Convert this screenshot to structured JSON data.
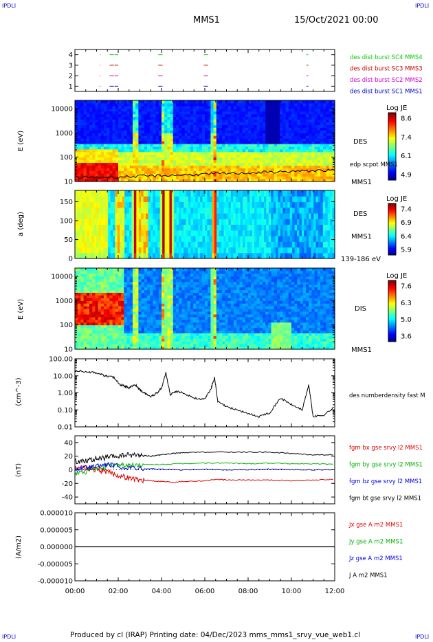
{
  "header": {
    "corner_left": "IPDLI",
    "corner_right": "IPDLI",
    "corner_bottom_left": "IPDLI",
    "corner_bottom_right": "IPDLI",
    "spacecraft": "MMS1",
    "date": "15/Oct/2021 00:00"
  },
  "footer": {
    "text": "Produced by cl (IRAP)   Printing date: 04/Dec/2023   mms_mms1_srvy_vue_web1.cl"
  },
  "colors": {
    "mms1": "#0000cc",
    "mms2": "#cc00cc",
    "mms3": "#cc0000",
    "mms4": "#00cc00",
    "bx": "#e00000",
    "by": "#00b000",
    "bz": "#0000e0",
    "bt": "#000000"
  },
  "chart_data": [
    {
      "type": "scatter",
      "name": "burst-availability",
      "ylim": [
        0.5,
        4.5
      ],
      "yticks": [
        "1",
        "2",
        "3",
        "4"
      ],
      "series": [
        {
          "name": "des dist burst SC1 MMS1",
          "y": 1,
          "intervals": [
            [
              1.6,
              1.8
            ],
            [
              1.83,
              2.0
            ],
            [
              3.85,
              4.05
            ],
            [
              5.95,
              6.15
            ],
            [
              10.7,
              10.78
            ]
          ]
        },
        {
          "name": "des dist burst SC2 MMS2",
          "y": 2,
          "intervals": [
            [
              1.6,
              1.8
            ],
            [
              1.83,
              2.0
            ],
            [
              3.85,
              4.05
            ],
            [
              5.95,
              6.15
            ],
            [
              10.7,
              10.78
            ]
          ]
        },
        {
          "name": "des dist burst SC3 MMS3",
          "y": 3,
          "intervals": [
            [
              1.6,
              1.8
            ],
            [
              1.83,
              2.0
            ],
            [
              3.85,
              4.05
            ],
            [
              5.95,
              6.15
            ],
            [
              10.7,
              10.78
            ]
          ]
        },
        {
          "name": "des dist burst SC4 MMS4",
          "y": 4,
          "intervals": [
            [
              1.6,
              1.8
            ],
            [
              1.83,
              2.0
            ],
            [
              3.85,
              4.05
            ],
            [
              5.95,
              6.15
            ],
            [
              10.7,
              10.78
            ]
          ]
        }
      ]
    },
    {
      "type": "heatmap",
      "name": "des-energy",
      "ylabel": "E (eV)",
      "yticks": [
        "10",
        "100",
        "1000",
        "10000"
      ],
      "label": "DES",
      "sc": "MMS1",
      "overlay_label": "edp scpot MMS1",
      "colorbar": {
        "title": "Log JE",
        "ticks": [
          "8.6",
          "7.4",
          "6.1",
          "4.9"
        ]
      }
    },
    {
      "type": "heatmap",
      "name": "des-pitch-angle",
      "ylabel": "a (deg)",
      "yticks": [
        "0",
        "50",
        "100",
        "150"
      ],
      "label": "DES",
      "sc": "MMS1",
      "energy_range": "139-186 eV",
      "colorbar": {
        "title": "Log JE",
        "ticks": [
          "7.4",
          "6.9",
          "6.4",
          "5.9"
        ]
      }
    },
    {
      "type": "heatmap",
      "name": "dis-energy",
      "ylabel": "E (eV)",
      "yticks": [
        "10",
        "100",
        "1000",
        "10000"
      ],
      "label": "DIS",
      "sc": "MMS1",
      "colorbar": {
        "title": "Log JE",
        "ticks": [
          "7.6",
          "6.3",
          "5.0",
          "3.6"
        ]
      }
    },
    {
      "type": "line",
      "name": "density",
      "ylabel": "(cm^-3)",
      "yticks": [
        "0.01",
        "0.10",
        "1.00",
        "10.00",
        "100.00"
      ],
      "series": [
        {
          "name": "des numberdensity fast M",
          "x": [
            0,
            0.5,
            1.0,
            1.4,
            1.8,
            2.1,
            2.3,
            2.5,
            2.8,
            3.0,
            3.2,
            3.5,
            3.8,
            4.0,
            4.2,
            4.4,
            4.7,
            5.0,
            5.5,
            6.0,
            6.3,
            6.45,
            6.6,
            7.0,
            7.5,
            8.0,
            8.5,
            9.0,
            9.5,
            10.0,
            10.5,
            10.8,
            11.0,
            11.5,
            12.0
          ],
          "y": [
            20,
            18,
            15,
            10,
            8,
            3,
            2.5,
            2,
            3,
            1.5,
            1,
            0.6,
            1,
            2,
            15,
            0.8,
            1.2,
            1,
            0.5,
            0.4,
            2,
            8,
            0.3,
            0.15,
            0.1,
            0.06,
            0.04,
            0.07,
            0.5,
            0.2,
            0.1,
            3,
            0.04,
            0.05,
            0.15
          ]
        }
      ]
    },
    {
      "type": "line",
      "name": "magnetic-field",
      "ylabel": "(nT)",
      "yticks": [
        "-40",
        "-20",
        "0",
        "20",
        "40"
      ],
      "ylim": [
        -50,
        50
      ],
      "series": [
        {
          "name": "fgm bx gse srvy l2 MMS1",
          "color": "bx",
          "x": [
            0,
            0.5,
            1.0,
            1.5,
            2.0,
            2.5,
            3.0,
            3.5,
            4.0,
            4.5,
            5.0,
            6.0,
            6.5,
            7.0,
            8.0,
            9.0,
            10.0,
            11.0,
            12.0
          ],
          "y": [
            5,
            2,
            0,
            -3,
            -8,
            -12,
            -15,
            -16,
            -17,
            -18,
            -17,
            -16,
            -14,
            -15,
            -15,
            -15,
            -16,
            -15,
            -14
          ]
        },
        {
          "name": "fgm by gse srvy l2 MMS1",
          "color": "by",
          "x": [
            0,
            0.5,
            1.0,
            1.5,
            2.0,
            2.5,
            3.0,
            4.0,
            5.0,
            6.0,
            7.0,
            8.0,
            9.0,
            10.0,
            11.0,
            12.0
          ],
          "y": [
            -5,
            -3,
            2,
            5,
            8,
            6,
            7,
            8,
            9,
            10,
            10,
            9,
            10,
            9,
            9,
            8
          ]
        },
        {
          "name": "fgm bz gse srvy l2 MMS1",
          "color": "bz",
          "x": [
            0,
            0.5,
            1.0,
            1.5,
            2.0,
            3.0,
            4.0,
            5.0,
            6.0,
            7.0,
            8.0,
            9.0,
            10.0,
            11.0,
            12.0
          ],
          "y": [
            2,
            3,
            5,
            8,
            5,
            2,
            1,
            0,
            1,
            0,
            0,
            1,
            0,
            0,
            0
          ]
        },
        {
          "name": "fgm bt gse srvy l2 MMS1",
          "color": "bt",
          "x": [
            0,
            0.5,
            1.0,
            1.5,
            2.0,
            2.5,
            3.0,
            3.5,
            4.0,
            4.5,
            5.0,
            6.0,
            7.0,
            8.0,
            9.0,
            10.0,
            11.0,
            12.0
          ],
          "y": [
            12,
            14,
            16,
            18,
            20,
            22,
            22,
            20,
            22,
            24,
            25,
            26,
            26,
            26,
            26,
            24,
            22,
            22
          ]
        }
      ]
    },
    {
      "type": "line",
      "name": "current-density",
      "ylabel": "(A/m2)",
      "yticks": [
        "-0.000010",
        "-0.000005",
        "0.000000",
        "0.000005",
        "0.000010"
      ],
      "ylim": [
        -1e-05,
        1e-05
      ],
      "series": [
        {
          "name": "Jx gse A m2 MMS1",
          "color": "bx"
        },
        {
          "name": "Jy gse A m2 MMS1",
          "color": "by"
        },
        {
          "name": "Jz gse A m2 MMS1",
          "color": "bz"
        },
        {
          "name": "J A m2 MMS1",
          "color": "bt",
          "x": [
            0,
            12
          ],
          "y": [
            0,
            0
          ]
        }
      ]
    }
  ],
  "time_axis": {
    "xlim": [
      0,
      12
    ],
    "ticks": [
      "00:00",
      "02:00",
      "04:00",
      "06:00",
      "08:00",
      "10:00",
      "12:00"
    ]
  }
}
